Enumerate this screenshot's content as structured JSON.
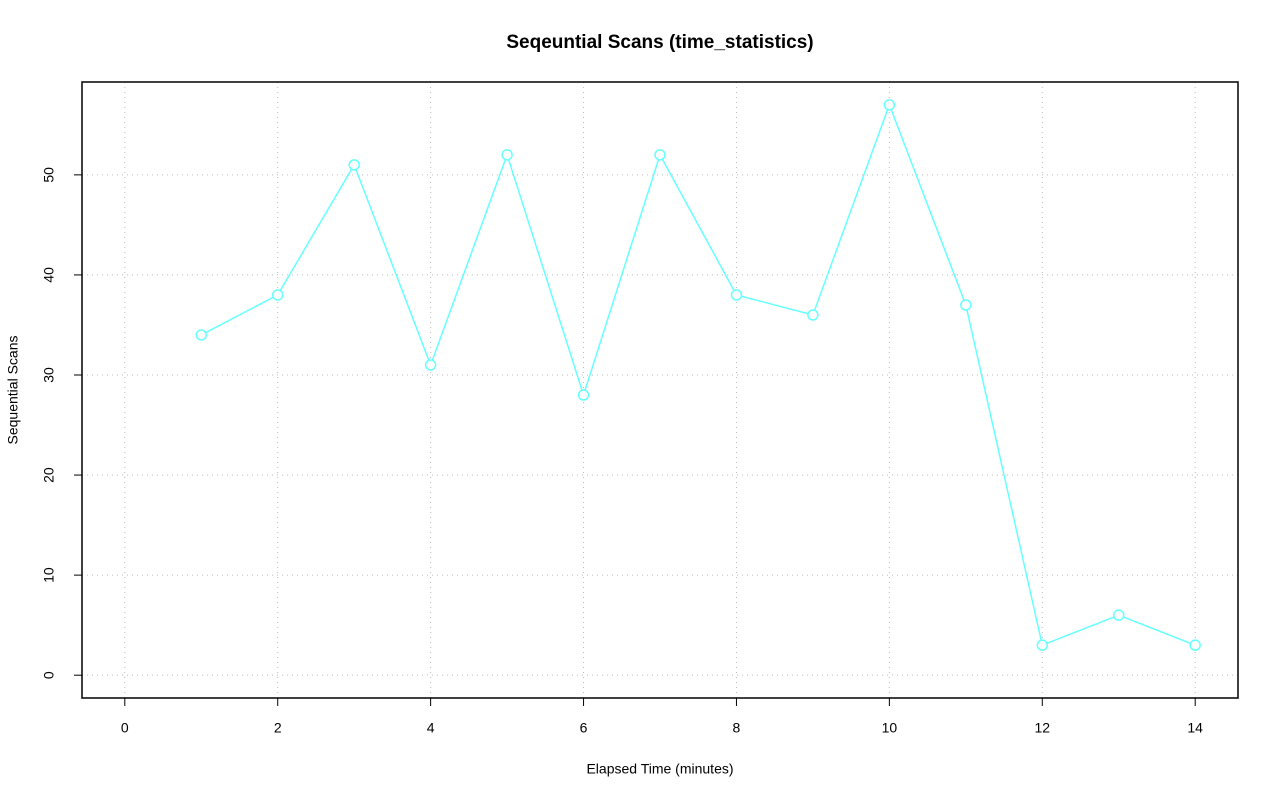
{
  "chart_data": {
    "type": "line",
    "title": "Seqeuntial Scans (time_statistics)",
    "xlabel": "Elapsed Time (minutes)",
    "ylabel": "Sequential Scans",
    "x": [
      1,
      2,
      3,
      4,
      5,
      6,
      7,
      8,
      9,
      10,
      11,
      12,
      13,
      14
    ],
    "values": [
      34,
      38,
      51,
      31,
      52,
      28,
      52,
      38,
      36,
      57,
      37,
      3,
      6,
      3
    ],
    "color": "#66ffff",
    "marker": "open-circle",
    "xlim": [
      -0.56,
      14.56
    ],
    "ylim": [
      -2.28,
      59.28
    ],
    "xticks": [
      0,
      2,
      4,
      6,
      8,
      10,
      12,
      14
    ],
    "yticks": [
      0,
      10,
      20,
      30,
      40,
      50
    ],
    "grid": true
  }
}
